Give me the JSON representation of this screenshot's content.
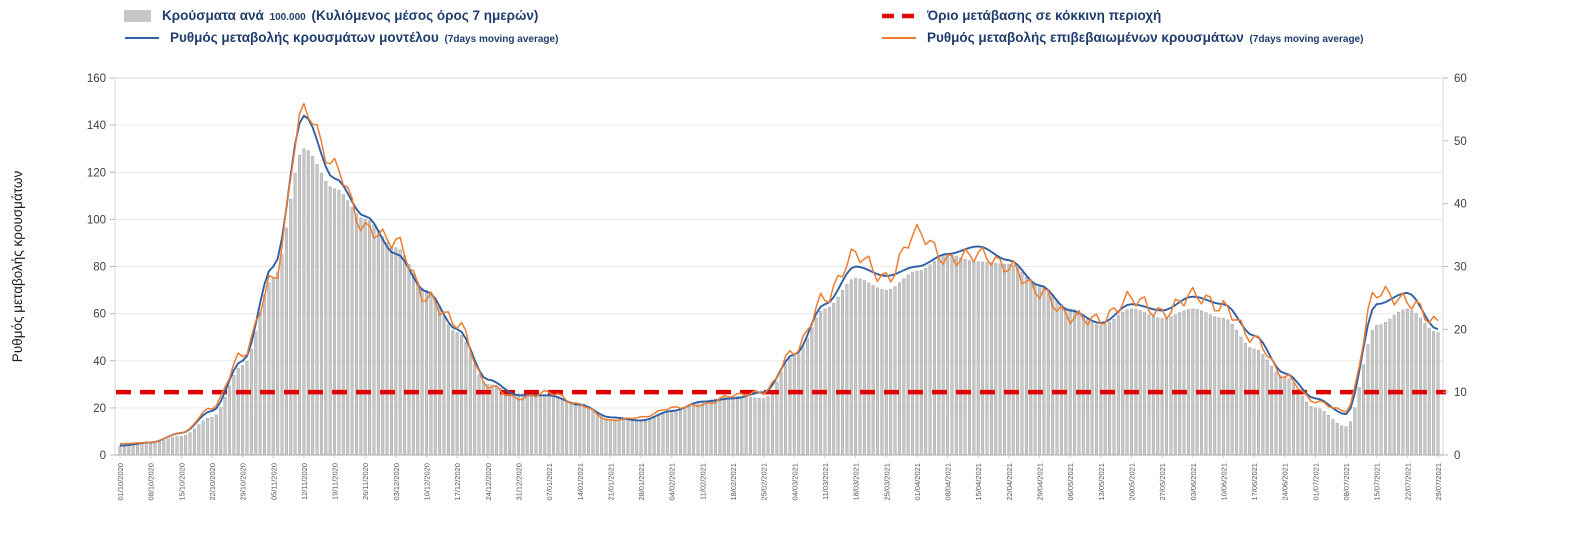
{
  "legend": {
    "items": [
      {
        "id": "cases-bars",
        "pre": "Κρούσματα ανά ",
        "small": "100.000",
        "post": " (Κυλιόμενος μέσος όρος 7 ημερών)"
      },
      {
        "id": "red-threshold",
        "pre": "Όριο μετάβασης σε κόκκινη περιοχή",
        "small": "",
        "post": ""
      },
      {
        "id": "model-rate",
        "pre": "Ρυθμός μεταβολής κρουσμάτων μοντέλου ",
        "small": "(7days moving average)",
        "post": ""
      },
      {
        "id": "confirmed-rate",
        "pre": "Ρυθμός μεταβολής επιβεβαιωμένων κρουσμάτων ",
        "small": "(7days moving average)",
        "post": ""
      }
    ]
  },
  "chart_data": {
    "type": "bar",
    "title": "",
    "xlabel": "",
    "ylabel": "Ρυθμός μεταβολής κρουσμάτων",
    "axes": {
      "left": {
        "min": 0,
        "max": 160,
        "step": 20,
        "title": "Ρυθμός μεταβολής κρουσμάτων"
      },
      "right": {
        "min": 0,
        "max": 60,
        "step": 10,
        "title": ""
      }
    },
    "layout_hints": {
      "legend_position": "top",
      "grid": "horizontal",
      "x_labels_rotated_deg": -90,
      "interpolation": "weekly anchors smoothed to daily (7x)"
    },
    "x_weekly_labels": [
      "01/10/2020",
      "08/10/2020",
      "15/10/2020",
      "22/10/2020",
      "29/10/2020",
      "05/11/2020",
      "12/11/2020",
      "19/11/2020",
      "26/11/2020",
      "03/12/2020",
      "10/12/2020",
      "17/12/2020",
      "24/12/2020",
      "31/12/2020",
      "07/01/2021",
      "14/01/2021",
      "21/01/2021",
      "28/01/2021",
      "04/02/2021",
      "11/02/2021",
      "18/02/2021",
      "25/02/2021",
      "04/03/2021",
      "11/03/2021",
      "18/03/2021",
      "25/03/2021",
      "01/04/2021",
      "08/04/2021",
      "15/04/2021",
      "22/04/2021",
      "29/04/2021",
      "06/05/2021",
      "13/05/2021",
      "20/05/2021",
      "27/05/2021",
      "03/06/2021",
      "10/06/2021",
      "17/06/2021",
      "24/06/2021",
      "01/07/2021",
      "08/07/2021",
      "15/07/2021",
      "22/07/2021",
      "29/07/2021"
    ],
    "series": [
      {
        "name": "Κρούσματα ανά 100.000 (Κυλιόμενος μέσος όρος 7 ημερών)",
        "type": "bar",
        "axis": "left",
        "color": "#c6c6c6",
        "edge_color": "#9e9e9e",
        "weekly_values": [
          4,
          5,
          8,
          16,
          38,
          75,
          130,
          113,
          100,
          88,
          70,
          52,
          30,
          26,
          25,
          22,
          15,
          15,
          18,
          23,
          25,
          24,
          42,
          62,
          75,
          70,
          78,
          85,
          82,
          81,
          72,
          62,
          55,
          62,
          58,
          62,
          58,
          45,
          33,
          20,
          12,
          55,
          62,
          52
        ]
      },
      {
        "name": "Ρυθμός μεταβολής κρουσμάτων μοντέλου (7days moving average)",
        "type": "line",
        "axis": "right",
        "color": "#2f5fa5",
        "weekly_values": [
          1.5,
          2,
          3.5,
          7,
          15,
          30,
          54,
          44,
          38,
          32,
          26,
          20,
          12,
          9.5,
          9.5,
          8,
          6,
          5.5,
          7,
          8.5,
          9,
          10,
          16,
          24,
          30,
          28.5,
          30,
          32,
          33.2,
          31,
          27,
          23,
          21,
          24,
          23,
          25.2,
          24,
          19,
          13,
          9,
          6.5,
          24,
          25.8,
          20
        ]
      },
      {
        "name": "Ρυθμός μεταβολής επιβεβαιωμένων κρουσμάτων (7days moving average)",
        "type": "line",
        "axis": "right",
        "color": "#ed7d31",
        "weekly_values": [
          1.8,
          2,
          3.5,
          7.5,
          16,
          28,
          55,
          46,
          36,
          34,
          25,
          21,
          11,
          9,
          10,
          8,
          5.5,
          6,
          7.5,
          8,
          9.5,
          10,
          16.5,
          25,
          32,
          28,
          35.5,
          31,
          32,
          30,
          26,
          22,
          21.5,
          25,
          22.5,
          25.5,
          23.5,
          18.5,
          12.5,
          8.5,
          7,
          26,
          24.5,
          21
        ]
      },
      {
        "name": "Όριο μετάβασης σε κόκκινη περιοχή",
        "type": "threshold",
        "axis": "right",
        "color": "#e00000",
        "value": 10
      }
    ]
  }
}
